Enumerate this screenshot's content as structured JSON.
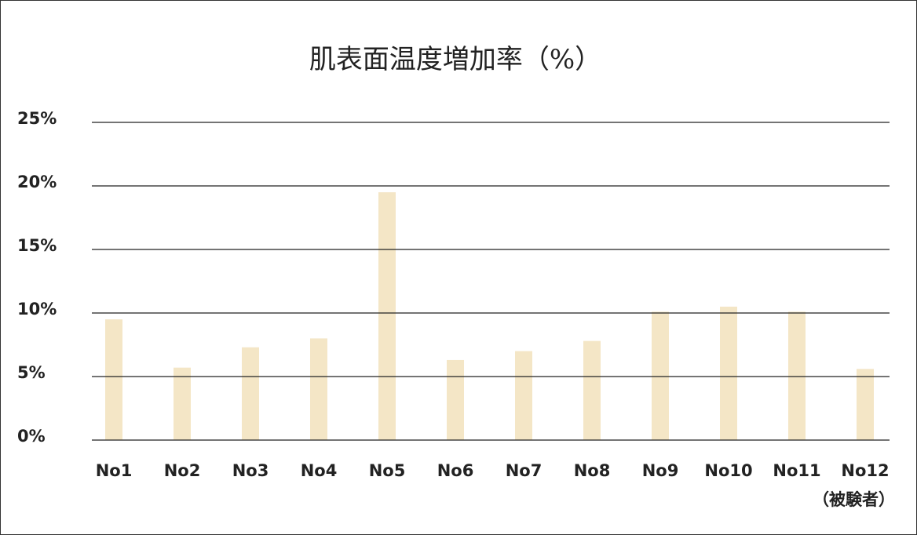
{
  "chart_data": {
    "type": "bar",
    "title": "肌表面温度増加率（%）",
    "categories": [
      "No1",
      "No2",
      "No3",
      "No4",
      "No5",
      "No6",
      "No7",
      "No8",
      "No9",
      "No10",
      "No11",
      "No12"
    ],
    "values": [
      9.5,
      5.7,
      7.3,
      8.0,
      19.5,
      6.3,
      7.0,
      7.8,
      10.1,
      10.5,
      10.1,
      5.6
    ],
    "color": "#f4e6c6",
    "x_label": "（被験者）",
    "ylim": [
      0,
      25
    ],
    "yticks": [
      {
        "value": 0,
        "label": "0%"
      },
      {
        "value": 5,
        "label": "5%"
      },
      {
        "value": 10,
        "label": "10%"
      },
      {
        "value": 15,
        "label": "15%"
      },
      {
        "value": 20,
        "label": "20%"
      },
      {
        "value": 25,
        "label": "25%"
      }
    ],
    "grid": true
  }
}
